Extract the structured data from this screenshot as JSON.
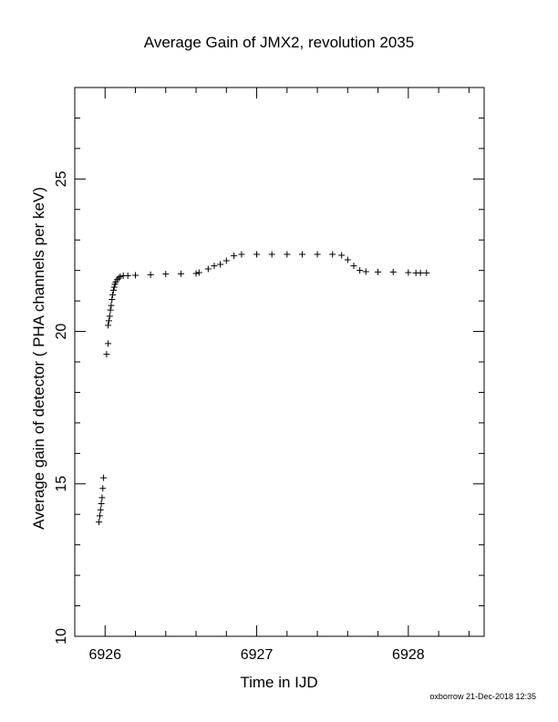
{
  "chart_data": {
    "type": "scatter",
    "title": "Average Gain of JMX2, revolution 2035",
    "xlabel": "Time in IJD",
    "ylabel": "Average gain of detector ( PHA channels per keV)",
    "xlim": [
      6925.8,
      6928.5
    ],
    "ylim": [
      10,
      28
    ],
    "xticks": [
      6926,
      6927,
      6928
    ],
    "yticks": [
      10,
      15,
      20,
      25
    ],
    "marker": "+",
    "grid": false,
    "points": [
      [
        6925.96,
        13.75
      ],
      [
        6925.965,
        13.95
      ],
      [
        6925.97,
        14.15
      ],
      [
        6925.975,
        14.35
      ],
      [
        6925.98,
        14.55
      ],
      [
        6925.985,
        14.85
      ],
      [
        6925.99,
        15.2
      ],
      [
        6926.01,
        19.25
      ],
      [
        6926.02,
        19.6
      ],
      [
        6926.02,
        20.2
      ],
      [
        6926.025,
        20.35
      ],
      [
        6926.03,
        20.5
      ],
      [
        6926.035,
        20.7
      ],
      [
        6926.04,
        20.85
      ],
      [
        6926.045,
        21.05
      ],
      [
        6926.05,
        21.2
      ],
      [
        6926.055,
        21.35
      ],
      [
        6926.06,
        21.45
      ],
      [
        6926.065,
        21.55
      ],
      [
        6926.07,
        21.62
      ],
      [
        6926.08,
        21.7
      ],
      [
        6926.09,
        21.75
      ],
      [
        6926.1,
        21.8
      ],
      [
        6926.12,
        21.83
      ],
      [
        6926.15,
        21.83
      ],
      [
        6926.2,
        21.84
      ],
      [
        6926.3,
        21.86
      ],
      [
        6926.4,
        21.88
      ],
      [
        6926.5,
        21.89
      ],
      [
        6926.6,
        21.9
      ],
      [
        6926.62,
        21.93
      ],
      [
        6926.68,
        22.05
      ],
      [
        6926.72,
        22.15
      ],
      [
        6926.76,
        22.2
      ],
      [
        6926.8,
        22.32
      ],
      [
        6926.85,
        22.48
      ],
      [
        6926.9,
        22.53
      ],
      [
        6927.0,
        22.53
      ],
      [
        6927.1,
        22.53
      ],
      [
        6927.2,
        22.53
      ],
      [
        6927.3,
        22.53
      ],
      [
        6927.4,
        22.53
      ],
      [
        6927.5,
        22.53
      ],
      [
        6927.56,
        22.5
      ],
      [
        6927.6,
        22.35
      ],
      [
        6927.64,
        22.15
      ],
      [
        6927.68,
        22.0
      ],
      [
        6927.72,
        21.96
      ],
      [
        6927.8,
        21.95
      ],
      [
        6927.9,
        21.95
      ],
      [
        6928.0,
        21.93
      ],
      [
        6928.05,
        21.92
      ],
      [
        6928.08,
        21.92
      ],
      [
        6928.12,
        21.92
      ]
    ]
  },
  "footer": {
    "note": "oxborrow 21-Dec-2018 12:35"
  }
}
